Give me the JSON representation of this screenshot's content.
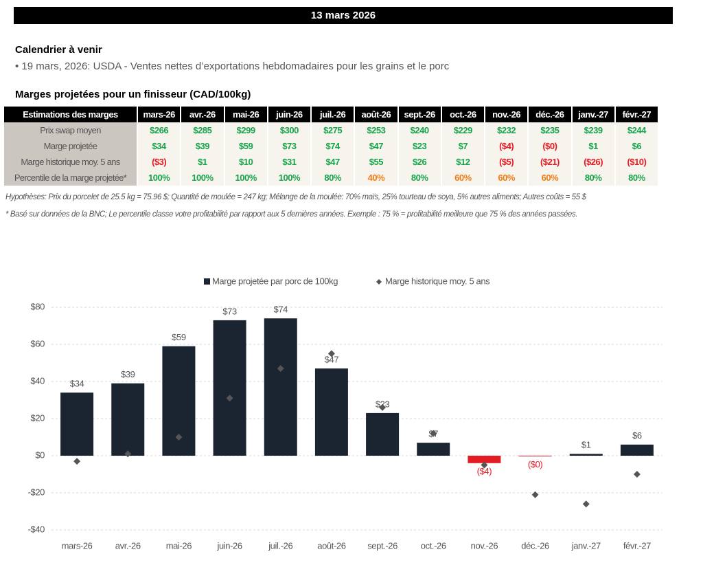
{
  "header": {
    "title": "13 mars 2026"
  },
  "calendar": {
    "title": "Calendrier à venir",
    "items": [
      "• 19 mars, 2026: USDA - Ventes nettes d’exportations hebdomadaires pour les grains et le porc"
    ]
  },
  "section_title": "Marges projetées pour un finisseur (CAD/100kg)",
  "table": {
    "header": [
      "Estimations des marges",
      "mars-26",
      "avr.-26",
      "mai-26",
      "juin-26",
      "juil.-26",
      "août-26",
      "sept.-26",
      "oct.-26",
      "nov.-26",
      "déc.-26",
      "janv.-27",
      "févr.-27"
    ],
    "rows": [
      [
        "Prix swap moyen",
        "$266",
        "$285",
        "$299",
        "$300",
        "$275",
        "$253",
        "$240",
        "$229",
        "$232",
        "$235",
        "$239",
        "$244"
      ],
      [
        "Marge projetée",
        "$34",
        "$39",
        "$59",
        "$73",
        "$74",
        "$47",
        "$23",
        "$7",
        "($4)",
        "($0)",
        "$1",
        "$6"
      ],
      [
        "Marge historique moy. 5 ans",
        "($3)",
        "$1",
        "$10",
        "$31",
        "$47",
        "$55",
        "$26",
        "$12",
        "($5)",
        "($21)",
        "($26)",
        "($10)"
      ],
      [
        "Percentile de la marge projetée*",
        "100%",
        "100%",
        "100%",
        "100%",
        "80%",
        "40%",
        "80%",
        "60%",
        "60%",
        "60%",
        "80%",
        "80%"
      ]
    ]
  },
  "notes": [
    "Hypothèses: Prix du porcelet de 25.5 kg = 75.96 $; Quantité de moulée = 247 kg; Mélange de la moulée: 70% maïs, 25% tourteau de soya, 5% autres aliments; Autres coûts = 55 $",
    "* Basé sur données de la BNC; Le percentile classe votre profitabilité par rapport aux 5 dernières années. Exemple : 75 % = profitabilité meilleure que 75 % des années passées."
  ],
  "chart_data": {
    "type": "bar",
    "categories": [
      "mars-26",
      "avr.-26",
      "mai-26",
      "juin-26",
      "juil.-26",
      "août-26",
      "sept.-26",
      "oct.-26",
      "nov.-26",
      "déc.-26",
      "janv.-27",
      "févr.-27"
    ],
    "series": [
      {
        "name": "Marge projetée par porc de 100kg",
        "type": "bar",
        "color": "#1b2531",
        "negative_color": "#e31b23",
        "values": [
          34,
          39,
          59,
          73,
          74,
          47,
          23,
          7,
          -4,
          -0.3,
          1,
          6
        ],
        "value_labels": [
          "$34",
          "$39",
          "$59",
          "$73",
          "$74",
          "$47",
          "$23",
          "$7",
          "($4)",
          "($0)",
          "$1",
          "$6"
        ]
      },
      {
        "name": "Marge historique moy. 5 ans",
        "type": "scatter",
        "color": "#555555",
        "values": [
          -3,
          1,
          10,
          31,
          47,
          55,
          26,
          12,
          -5,
          -21,
          -26,
          -10
        ]
      }
    ],
    "ylim": [
      -40,
      80
    ],
    "yticks": [
      {
        "value": -40,
        "label": "-$40"
      },
      {
        "value": -20,
        "label": "-$20"
      },
      {
        "value": 0,
        "label": "$0"
      },
      {
        "value": 20,
        "label": "$20"
      },
      {
        "value": 40,
        "label": "$40"
      },
      {
        "value": 60,
        "label": "$60"
      },
      {
        "value": 80,
        "label": "$80"
      }
    ],
    "grid": true,
    "legend": "top"
  }
}
